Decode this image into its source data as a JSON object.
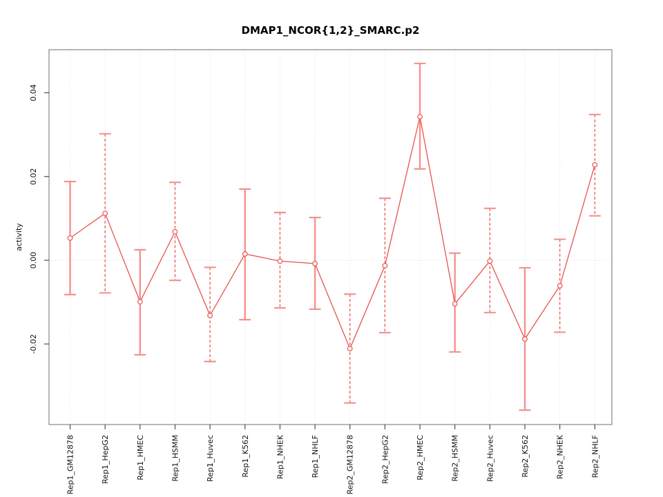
{
  "chart_data": {
    "type": "line",
    "title": "DMAP1_NCOR{1,2}_SMARC.p2",
    "ylabel": "activity",
    "xlabel": "",
    "legend": "none",
    "grid": "vertical dotted line at each category; horizontal dotted line at zero",
    "ylim": [
      -0.0392,
      0.0503
    ],
    "y_ticks": [
      -0.02,
      0.0,
      0.02,
      0.04
    ],
    "y_tick_labels": [
      "-0.02",
      "0.00",
      "0.02",
      "0.04"
    ],
    "categories": [
      "Rep1_GM12878",
      "Rep1_HepG2",
      "Rep1_HMEC",
      "Rep1_HSMM",
      "Rep1_Huvec",
      "Rep1_K562",
      "Rep1_NHEK",
      "Rep1_NHLF",
      "Rep2_GM12878",
      "Rep2_HepG2",
      "Rep2_HMEC",
      "Rep2_HSMM",
      "Rep2_Huvec",
      "Rep2_K562",
      "Rep2_NHEK",
      "Rep2_NHLF"
    ],
    "series": [
      {
        "name": "activity",
        "values": [
          0.0053,
          0.0112,
          -0.0099,
          0.0068,
          -0.0132,
          0.0015,
          -0.0002,
          -0.0008,
          -0.0211,
          -0.0013,
          0.0343,
          -0.0104,
          -0.0002,
          -0.0188,
          -0.0061,
          0.0228
        ],
        "err_high": [
          0.0188,
          0.0302,
          0.0025,
          0.0186,
          -0.0017,
          0.017,
          0.0114,
          0.0102,
          -0.0081,
          0.0148,
          0.047,
          0.0017,
          0.0124,
          -0.0018,
          0.005,
          0.0348
        ],
        "err_low": [
          -0.0082,
          -0.0078,
          -0.0226,
          -0.0048,
          -0.0242,
          -0.0142,
          -0.0114,
          -0.0117,
          -0.0341,
          -0.0173,
          0.0218,
          -0.0219,
          -0.0125,
          -0.0358,
          -0.0172,
          0.0106
        ],
        "bar_styles": [
          "solid",
          "dashed",
          "solid",
          "dashed",
          "dashed",
          "solid",
          "dashed",
          "solid",
          "dashed",
          "dashed",
          "solid",
          "solid",
          "dashed",
          "solid",
          "dashed",
          "dashed"
        ]
      }
    ],
    "colors": {
      "line": "#e8524d",
      "marker": "#e8524d",
      "errorbar_solid": "#f5918d",
      "errorbar_dashed": "#e8524d",
      "errorbar_cap": "#f3928e",
      "gridline": "#dcdcdc",
      "box": "#909090",
      "tick": "#3c3c3c",
      "text": "#111111"
    }
  }
}
